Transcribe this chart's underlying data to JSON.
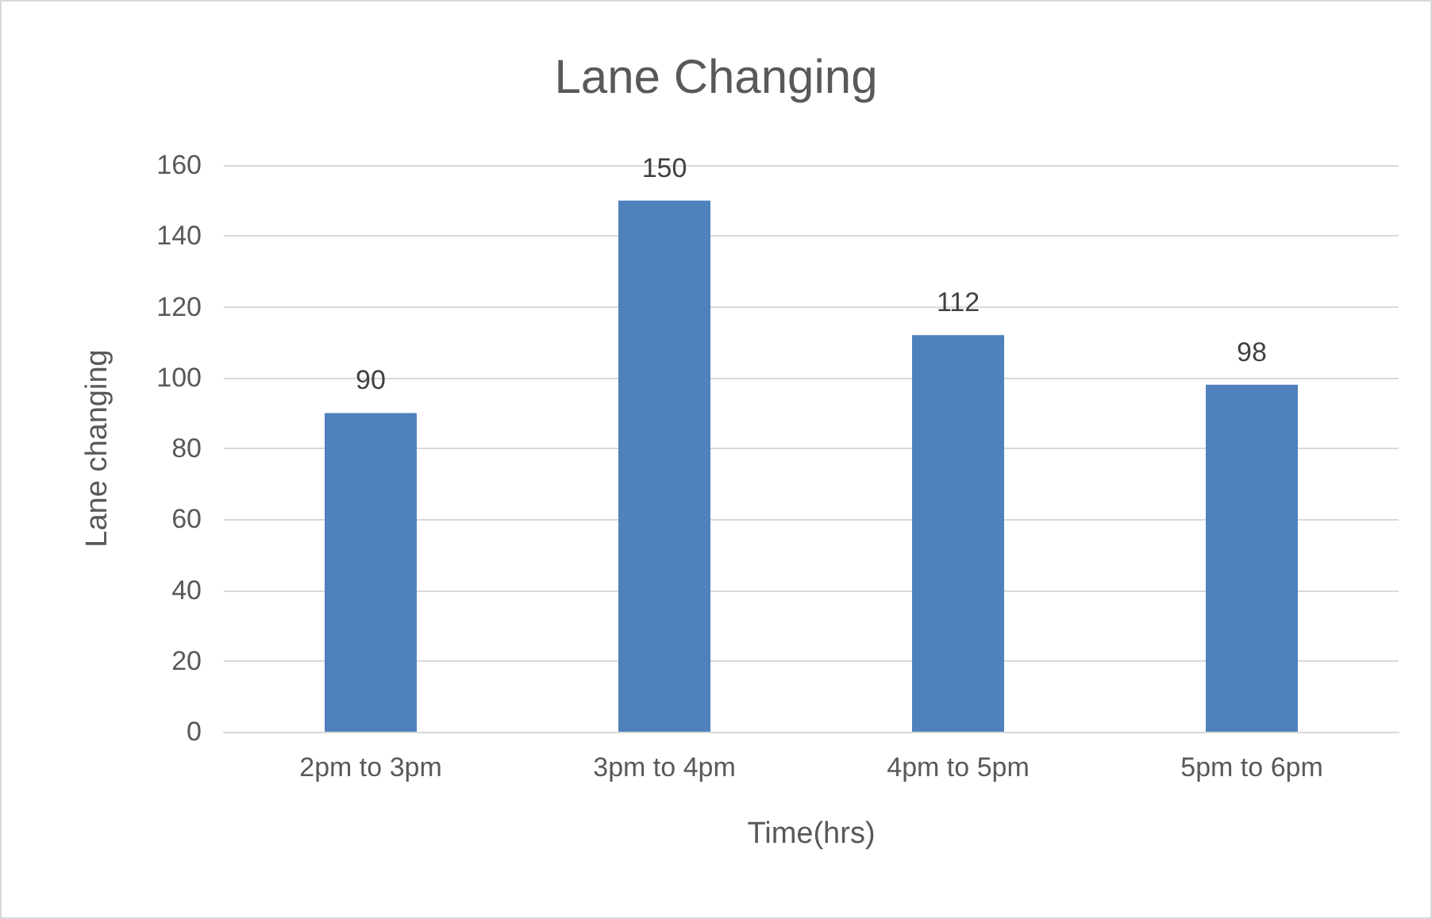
{
  "chart_data": {
    "type": "bar",
    "title": "Lane Changing",
    "xlabel": "Time(hrs)",
    "ylabel": "Lane changing",
    "categories": [
      "2pm to 3pm",
      "3pm to 4pm",
      "4pm to 5pm",
      "5pm to 6pm"
    ],
    "values": [
      90,
      150,
      112,
      98
    ],
    "color": "#4f81bd",
    "ylim": [
      0,
      160
    ],
    "yticks": [
      0,
      20,
      40,
      60,
      80,
      100,
      120,
      140,
      160
    ],
    "grid": "y",
    "data_labels": true
  }
}
